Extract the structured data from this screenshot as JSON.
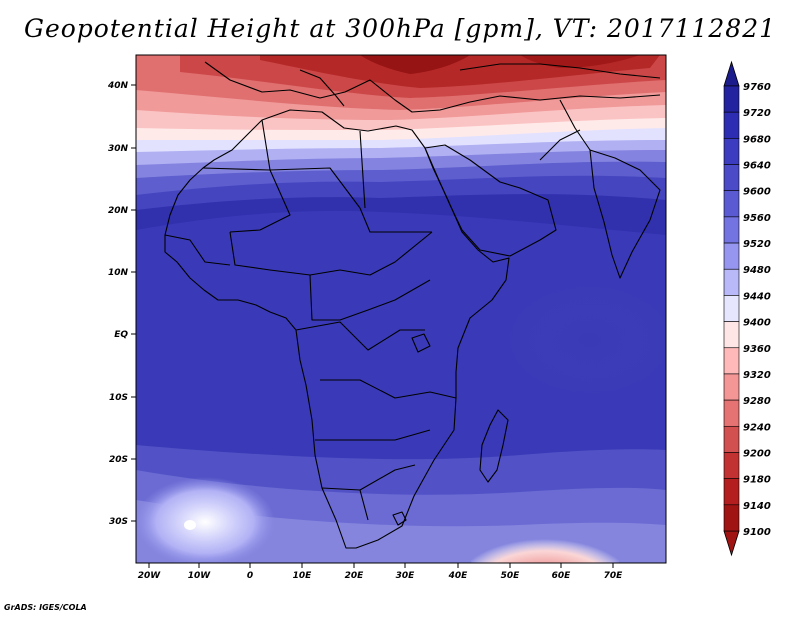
{
  "title": "Geopotential Height at 300hPa [gpm], VT: 2017112821",
  "credit": "GrADS: IGES/COLA",
  "map": {
    "region": "Africa and surroundings",
    "lon_labels": [
      "20W",
      "10W",
      "0",
      "10E",
      "20E",
      "30E",
      "40E",
      "50E",
      "60E",
      "70E"
    ],
    "lat_labels": [
      "40N",
      "30N",
      "20N",
      "10N",
      "EQ",
      "10S",
      "20S",
      "30S"
    ]
  },
  "colorbar": {
    "levels": [
      "9760",
      "9720",
      "9680",
      "9640",
      "9600",
      "9560",
      "9520",
      "9480",
      "9440",
      "9400",
      "9360",
      "9320",
      "9280",
      "9240",
      "9200",
      "9180",
      "9140",
      "9100"
    ],
    "colors": [
      "#1c1c8c",
      "#2323a0",
      "#2d2db4",
      "#3c3cc0",
      "#4b4bc8",
      "#5a5ad2",
      "#7373e1",
      "#9696f0",
      "#b9b9fa",
      "#e6e6ff",
      "#ffe6e6",
      "#ffb9b9",
      "#f59696",
      "#e67373",
      "#d25050",
      "#c33232",
      "#b41e1e",
      "#a01414",
      "#8c0a0a"
    ],
    "top_arrow_color": "#1c1c8c",
    "bottom_arrow_color": "#a01414"
  }
}
